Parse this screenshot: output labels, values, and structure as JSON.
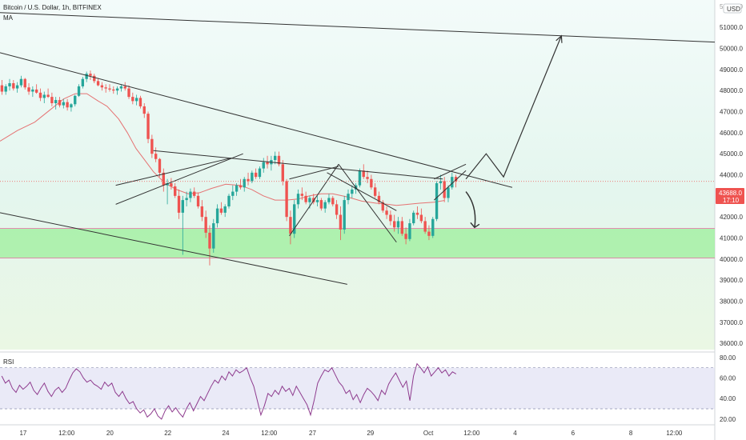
{
  "header": {
    "title": "Bitcoin / U.S. Dollar, 1h, BITFINEX",
    "ma_label": "MA",
    "currency_badge": "USD"
  },
  "rsi_label": "RSI",
  "price_tag": {
    "value": "43688.0",
    "countdown": "17:10"
  },
  "colors": {
    "bg_top": "#f3fbfa",
    "bg_mid": "#e4f6ee",
    "bg_bottom": "#eaf7e4",
    "rsi_band": "#dcdcf2",
    "rsi_line": "#8e3b8e",
    "ma_line": "#e57373",
    "up": "#26a69a",
    "down": "#ef5350",
    "zone": "#a5f0a5",
    "zone_edge": "#e06b9b",
    "pricetag": "#ef5350",
    "drawing": "#333333"
  },
  "chart_data": [
    {
      "type": "candlestick",
      "y_axis": {
        "range": [
          35700,
          52300
        ],
        "ticks": [
          36000,
          37000,
          38000,
          39000,
          40000,
          41000,
          42000,
          43000,
          44000,
          45000,
          46000,
          47000,
          48000,
          49000,
          50000,
          51000
        ],
        "tick_labels": [
          "36000.0",
          "37000.0",
          "38000.0",
          "39000.0",
          "40000.0",
          "41000.0",
          "42000.0",
          "43000.0",
          "44000.0",
          "45000.0",
          "46000.0",
          "47000.0",
          "48000.0",
          "49000.0",
          "50000.0",
          "51000.0"
        ],
        "partial_top_label": "52000.0"
      },
      "x_axis": {
        "range": [
          16.2,
          40.9
        ],
        "tick_values": [
          17,
          17.5,
          18,
          19,
          20,
          21,
          21.5,
          22,
          23,
          24,
          25,
          26,
          26.5,
          27,
          28,
          30
        ],
        "tick_labels": [
          "17",
          "12:00",
          "20",
          "22",
          "24",
          "12:00",
          "27",
          "29",
          "Oct",
          "12:00",
          "4",
          "6",
          "8",
          "12:00"
        ],
        "label_positions": [
          17,
          18.5,
          20,
          22,
          24,
          25.5,
          27,
          29,
          31,
          32.5,
          34,
          36,
          38,
          39.5
        ]
      },
      "price_line": 43688,
      "support_zone": [
        40050,
        41450
      ],
      "ma_points": [
        [
          16.2,
          45600
        ],
        [
          16.8,
          46100
        ],
        [
          17.4,
          46500
        ],
        [
          17.9,
          47050
        ],
        [
          18.4,
          47600
        ],
        [
          18.8,
          47850
        ],
        [
          19.2,
          47850
        ],
        [
          19.6,
          47500
        ],
        [
          19.9,
          47250
        ],
        [
          20.3,
          46650
        ],
        [
          20.6,
          46000
        ],
        [
          20.9,
          45250
        ],
        [
          21.2,
          44700
        ],
        [
          21.5,
          44150
        ],
        [
          21.9,
          43600
        ],
        [
          22.3,
          43300
        ],
        [
          22.7,
          43100
        ],
        [
          23.1,
          43150
        ],
        [
          23.5,
          43350
        ],
        [
          24.0,
          43550
        ],
        [
          24.5,
          43500
        ],
        [
          24.9,
          43300
        ],
        [
          25.3,
          43000
        ],
        [
          25.7,
          42800
        ],
        [
          26.1,
          42800
        ],
        [
          26.5,
          42850
        ],
        [
          26.9,
          43000
        ],
        [
          27.3,
          43100
        ],
        [
          27.7,
          43100
        ],
        [
          28.2,
          42950
        ],
        [
          28.7,
          42750
        ],
        [
          29.2,
          42650
        ],
        [
          29.6,
          42600
        ],
        [
          29.9,
          42550
        ],
        [
          30.3,
          42600
        ],
        [
          30.7,
          42650
        ],
        [
          31.2,
          42700
        ],
        [
          31.55,
          42780
        ]
      ],
      "candles_ohlc": [
        [
          48250,
          48500,
          47800,
          47950
        ],
        [
          47950,
          48300,
          47800,
          48200
        ],
        [
          48200,
          48550,
          48000,
          48350
        ],
        [
          48350,
          48500,
          48000,
          48100
        ],
        [
          48100,
          48400,
          47900,
          48250
        ],
        [
          48250,
          48700,
          48150,
          48550
        ],
        [
          48550,
          48600,
          48050,
          48150
        ],
        [
          48150,
          48350,
          47800,
          47950
        ],
        [
          47950,
          48200,
          47700,
          48050
        ],
        [
          48050,
          48300,
          47850,
          47900
        ],
        [
          47900,
          48100,
          47500,
          47650
        ],
        [
          47650,
          47950,
          47400,
          47800
        ],
        [
          47800,
          48100,
          47650,
          47700
        ],
        [
          47700,
          47900,
          47250,
          47400
        ],
        [
          47400,
          47700,
          47100,
          47550
        ],
        [
          47550,
          47700,
          47200,
          47300
        ],
        [
          47300,
          47600,
          47150,
          47450
        ],
        [
          47450,
          47600,
          47050,
          47200
        ],
        [
          47200,
          47400,
          47000,
          47350
        ],
        [
          47350,
          47800,
          47250,
          47750
        ],
        [
          47750,
          48300,
          47700,
          48200
        ],
        [
          48200,
          48650,
          48100,
          48550
        ],
        [
          48550,
          48900,
          48400,
          48800
        ],
        [
          48800,
          48950,
          48500,
          48700
        ],
        [
          48700,
          48800,
          48350,
          48450
        ],
        [
          48450,
          48600,
          48200,
          48250
        ],
        [
          48250,
          48400,
          48000,
          48150
        ],
        [
          48150,
          48300,
          47900,
          48100
        ],
        [
          48100,
          48300,
          47950,
          48050
        ],
        [
          48050,
          48200,
          47850,
          48000
        ],
        [
          48000,
          48200,
          47800,
          48100
        ],
        [
          48100,
          48300,
          47950,
          48200
        ],
        [
          48200,
          48400,
          48000,
          48100
        ],
        [
          48100,
          48250,
          47600,
          47700
        ],
        [
          47700,
          47900,
          47350,
          47500
        ],
        [
          47500,
          47800,
          47300,
          47650
        ],
        [
          47650,
          47750,
          47150,
          47250
        ],
        [
          47250,
          47400,
          46700,
          46900
        ],
        [
          46900,
          47000,
          45500,
          45700
        ],
        [
          45700,
          45900,
          44800,
          45000
        ],
        [
          45000,
          45300,
          44600,
          44750
        ],
        [
          44750,
          44800,
          43900,
          44100
        ],
        [
          44100,
          44300,
          43200,
          43500
        ],
        [
          43500,
          43800,
          42600,
          43600
        ],
        [
          43600,
          43850,
          43300,
          43450
        ],
        [
          43450,
          43600,
          42900,
          43000
        ],
        [
          43000,
          43300,
          41900,
          42200
        ],
        [
          42200,
          43000,
          40200,
          42800
        ],
        [
          42800,
          43200,
          42500,
          42900
        ],
        [
          42900,
          43350,
          42700,
          43200
        ],
        [
          43200,
          43400,
          42900,
          43000
        ],
        [
          43000,
          43150,
          42400,
          42500
        ],
        [
          42500,
          42800,
          41800,
          42000
        ],
        [
          42000,
          42300,
          41000,
          41250
        ],
        [
          41250,
          41600,
          39700,
          40500
        ],
        [
          40500,
          41900,
          40300,
          41700
        ],
        [
          41700,
          42600,
          41500,
          42400
        ],
        [
          42400,
          42700,
          42100,
          42200
        ],
        [
          42200,
          42600,
          42000,
          42500
        ],
        [
          42500,
          43100,
          42400,
          43000
        ],
        [
          43000,
          43500,
          42800,
          43200
        ],
        [
          43200,
          43600,
          43000,
          43500
        ],
        [
          43500,
          43800,
          43300,
          43400
        ],
        [
          43400,
          43900,
          43200,
          43800
        ],
        [
          43800,
          44100,
          43500,
          43700
        ],
        [
          43700,
          44200,
          43600,
          44100
        ],
        [
          44100,
          44300,
          43800,
          43900
        ],
        [
          43900,
          44400,
          43800,
          44300
        ],
        [
          44300,
          44800,
          44100,
          44600
        ],
        [
          44600,
          44900,
          44300,
          44500
        ],
        [
          44500,
          44900,
          44200,
          44700
        ],
        [
          44700,
          45100,
          44500,
          44900
        ],
        [
          44900,
          45100,
          44400,
          44500
        ],
        [
          44500,
          44700,
          43500,
          43700
        ],
        [
          43700,
          43800,
          41800,
          42000
        ],
        [
          42000,
          42300,
          40700,
          41200
        ],
        [
          41200,
          42800,
          41000,
          42600
        ],
        [
          42600,
          43300,
          42400,
          43100
        ],
        [
          43100,
          43400,
          42800,
          43000
        ],
        [
          43000,
          43200,
          42600,
          42700
        ],
        [
          42700,
          43000,
          42400,
          42900
        ],
        [
          42900,
          43100,
          42600,
          42700
        ],
        [
          42700,
          43000,
          42500,
          42800
        ],
        [
          42800,
          42900,
          42300,
          42400
        ],
        [
          42400,
          42800,
          42200,
          42700
        ],
        [
          42700,
          43100,
          42600,
          42900
        ],
        [
          42900,
          43000,
          42500,
          42600
        ],
        [
          42600,
          42800,
          41900,
          42100
        ],
        [
          42100,
          42500,
          40900,
          41400
        ],
        [
          41400,
          43000,
          41200,
          42800
        ],
        [
          42800,
          43300,
          42600,
          43100
        ],
        [
          43100,
          43500,
          42900,
          43300
        ],
        [
          43300,
          43600,
          43100,
          43500
        ],
        [
          43500,
          44300,
          43400,
          44200
        ],
        [
          44200,
          44500,
          43800,
          43900
        ],
        [
          43900,
          44200,
          43600,
          43800
        ],
        [
          43800,
          44000,
          43300,
          43400
        ],
        [
          43400,
          43600,
          42900,
          43000
        ],
        [
          43000,
          43200,
          42600,
          42700
        ],
        [
          42700,
          42800,
          42200,
          42300
        ],
        [
          42300,
          42500,
          41900,
          42100
        ],
        [
          42100,
          42300,
          41600,
          41800
        ],
        [
          41800,
          42100,
          41300,
          41500
        ],
        [
          41500,
          42000,
          41200,
          41800
        ],
        [
          41800,
          42000,
          41100,
          41200
        ],
        [
          41200,
          41500,
          40700,
          40950
        ],
        [
          40950,
          41900,
          40850,
          41700
        ],
        [
          41700,
          42300,
          41600,
          42200
        ],
        [
          42200,
          42500,
          41900,
          42100
        ],
        [
          42100,
          42400,
          41700,
          41800
        ],
        [
          41800,
          42000,
          41200,
          41300
        ],
        [
          41300,
          41600,
          40900,
          41100
        ],
        [
          41100,
          42000,
          41000,
          41900
        ],
        [
          41900,
          43700,
          41800,
          43600
        ],
        [
          43600,
          44000,
          43300,
          43700
        ],
        [
          43700,
          43900,
          42700,
          42900
        ],
        [
          42900,
          43500,
          42700,
          43400
        ],
        [
          43400,
          44100,
          43300,
          43900
        ],
        [
          43900,
          44000,
          43400,
          43700
        ]
      ],
      "drawings": {
        "trendlines": [
          {
            "from": [
              16.2,
              51700
            ],
            "to": [
              40.9,
              50300
            ]
          },
          {
            "from": [
              16.2,
              49800
            ],
            "to": [
              33.9,
              43400
            ]
          },
          {
            "from": [
              16.2,
              42200
            ],
            "to": [
              28.2,
              38800
            ]
          },
          {
            "from": [
              21.5,
              45150
            ],
            "to": [
              31.5,
              43800
            ]
          },
          {
            "from": [
              20.2,
              43500
            ],
            "to": [
              24.2,
              44800
            ]
          },
          {
            "from": [
              20.2,
              42600
            ],
            "to": [
              24.6,
              45000
            ]
          },
          {
            "from": [
              26.2,
              43800
            ],
            "to": [
              27.9,
              44400
            ]
          },
          {
            "from": [
              26.2,
              41100
            ],
            "to": [
              27.9,
              44500
            ]
          },
          {
            "from": [
              27.9,
              44500
            ],
            "to": [
              29.9,
              40800
            ]
          },
          {
            "from": [
              27.5,
              44100
            ],
            "to": [
              29.9,
              42300
            ]
          },
          {
            "from": [
              31.2,
              43800
            ],
            "to": [
              32.3,
              44500
            ]
          },
          {
            "from": [
              31.2,
              42800
            ],
            "to": [
              32.3,
              44200
            ]
          }
        ],
        "projection_path": [
          [
            32.3,
            43800
          ],
          [
            33.0,
            45000
          ],
          [
            33.6,
            43900
          ],
          [
            35.6,
            50600
          ]
        ],
        "down_arrow": [
          [
            32.3,
            43200
          ],
          [
            32.7,
            42500
          ],
          [
            32.6,
            41500
          ]
        ]
      }
    },
    {
      "type": "line",
      "name": "RSI",
      "y_axis": {
        "range": [
          16,
          83
        ],
        "ticks": [
          20,
          40,
          60,
          80
        ],
        "tick_labels": [
          "20.00",
          "40.00",
          "60.00",
          "80.00"
        ]
      },
      "band": [
        30,
        70
      ],
      "values": [
        62,
        55,
        58,
        50,
        46,
        53,
        49,
        52,
        56,
        48,
        44,
        50,
        55,
        47,
        42,
        48,
        51,
        46,
        50,
        58,
        65,
        69,
        66,
        60,
        56,
        58,
        54,
        52,
        49,
        56,
        52,
        55,
        46,
        42,
        47,
        40,
        35,
        37,
        30,
        26,
        29,
        22,
        25,
        30,
        23,
        20,
        28,
        33,
        27,
        31,
        26,
        22,
        30,
        36,
        28,
        35,
        42,
        38,
        45,
        52,
        58,
        55,
        62,
        58,
        66,
        62,
        68,
        65,
        67,
        70,
        60,
        52,
        38,
        24,
        33,
        45,
        42,
        48,
        44,
        52,
        47,
        50,
        43,
        52,
        46,
        40,
        34,
        24,
        38,
        55,
        62,
        68,
        66,
        70,
        63,
        56,
        52,
        45,
        48,
        39,
        44,
        36,
        44,
        50,
        47,
        43,
        38,
        48,
        44,
        54,
        60,
        65,
        58,
        51,
        57,
        38,
        62,
        74,
        70,
        65,
        71,
        62,
        66,
        70,
        65,
        68,
        62,
        66,
        64
      ]
    }
  ]
}
